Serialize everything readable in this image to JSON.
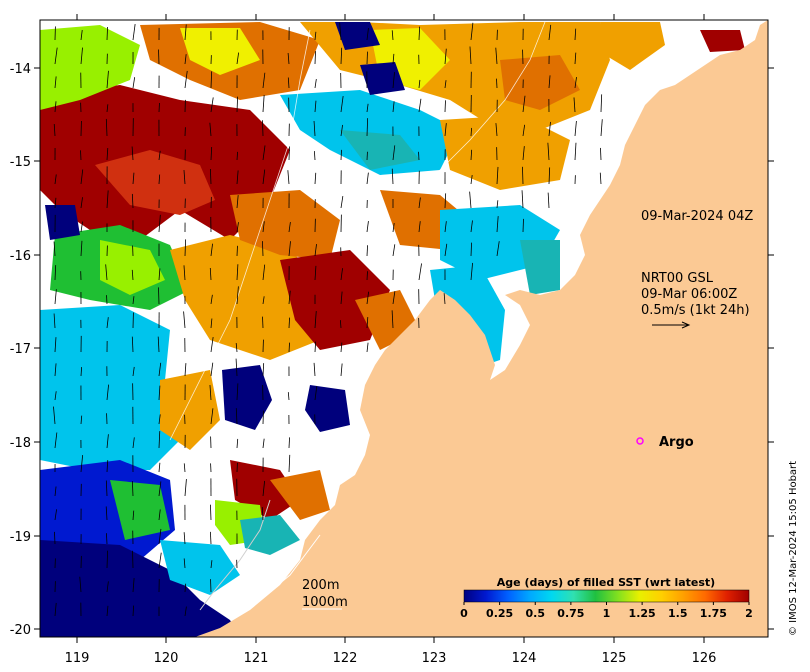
{
  "map": {
    "lon_ticks": [
      "119",
      "120",
      "121",
      "122",
      "123",
      "124",
      "125",
      "126"
    ],
    "lat_ticks": [
      "-14",
      "-15",
      "-16",
      "-17",
      "-18",
      "-19",
      "-20"
    ],
    "timestamp_label": "09-Mar-2024 04Z",
    "current": {
      "line1": "NRT00 GSL",
      "line2": "09-Mar 06:00Z",
      "line3": "0.5m/s (1kt 24h)"
    },
    "isobath": {
      "line1": "200m",
      "line2": "1000m"
    },
    "argo_label": "Argo",
    "credit": "© IMOS 12-Mar-2024 15:05 Hobart",
    "colorbar": {
      "title": "Age (days) of filled SST (wrt latest)",
      "ticks": [
        "0",
        "0.25",
        "0.5",
        "0.75",
        "1",
        "1.25",
        "1.5",
        "1.75",
        "2"
      ],
      "colors": [
        "#000080",
        "#0019d0",
        "#0060ff",
        "#00a8ff",
        "#00d8f0",
        "#30e0b0",
        "#20c040",
        "#80e020",
        "#e8f000",
        "#ffd000",
        "#ffa000",
        "#ff6a00",
        "#e02000",
        "#a00000"
      ]
    },
    "colors": {
      "land": "#fbc994",
      "navy": "#00007c",
      "blue": "#0019d0",
      "cyan": "#00c4ec",
      "teal": "#18b4b4",
      "green": "#1fbf33",
      "lime": "#98f000",
      "yellow": "#f0f000",
      "orange": "#f0a000",
      "darkorange": "#e07000",
      "red": "#d03010",
      "maroon": "#a00000",
      "argo": "#ff00ff"
    }
  }
}
